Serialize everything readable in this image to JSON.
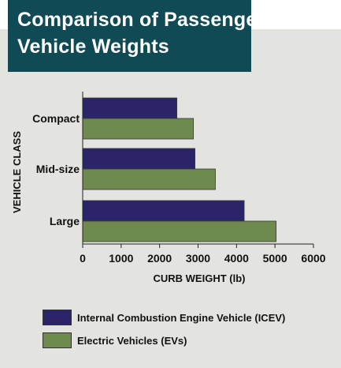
{
  "title_lines": [
    "Comparison of Passenger",
    "Vehicle Weights"
  ],
  "colors": {
    "title_bg": "#0f4a55",
    "panel_bg": "#e3e3df",
    "icev": "#2b2468",
    "ev": "#6e8a4e"
  },
  "chart_data": {
    "type": "bar",
    "orientation": "horizontal",
    "title": "Comparison of Passenger Vehicle Weights",
    "categories": [
      "Compact",
      "Mid-size",
      "Large"
    ],
    "series": [
      {
        "name": "Internal Combustion Engine Vehicle (ICEV)",
        "values": [
          2450,
          2920,
          4200
        ]
      },
      {
        "name": "Electric Vehicles (EVs)",
        "values": [
          2880,
          3450,
          5030
        ]
      }
    ],
    "xlabel": "CURB WEIGHT (lb)",
    "ylabel": "VEHICLE CLASS",
    "xlim": [
      0,
      6000
    ],
    "xticks": [
      "0",
      "1000",
      "2000",
      "3000",
      "4000",
      "5000",
      "6000"
    ],
    "grid": false,
    "legend_position": "bottom"
  }
}
